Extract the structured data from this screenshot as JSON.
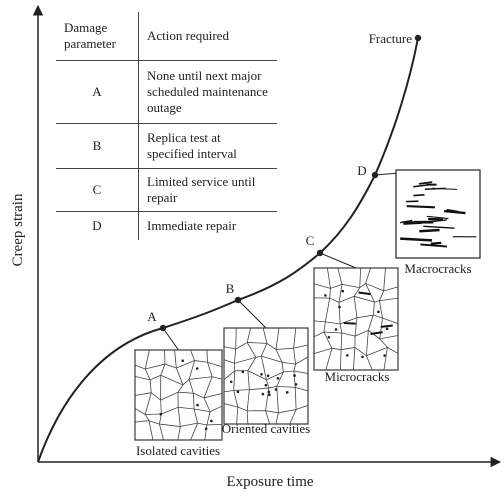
{
  "axes": {
    "x_label": "Exposure time",
    "y_label": "Creep strain"
  },
  "table": {
    "header": [
      "Damage parameter",
      "Action required"
    ],
    "rows": [
      [
        "A",
        "None until next major scheduled maintenance outage"
      ],
      [
        "B",
        "Replica test at specified interval"
      ],
      [
        "C",
        "Limited service until repair"
      ],
      [
        "D",
        "Immediate repair"
      ]
    ]
  },
  "points": [
    "A",
    "B",
    "C",
    "D",
    "Fracture"
  ],
  "insets": [
    "Isolated cavities",
    "Oriented cavities",
    "Microcracks",
    "Macrocracks"
  ]
}
